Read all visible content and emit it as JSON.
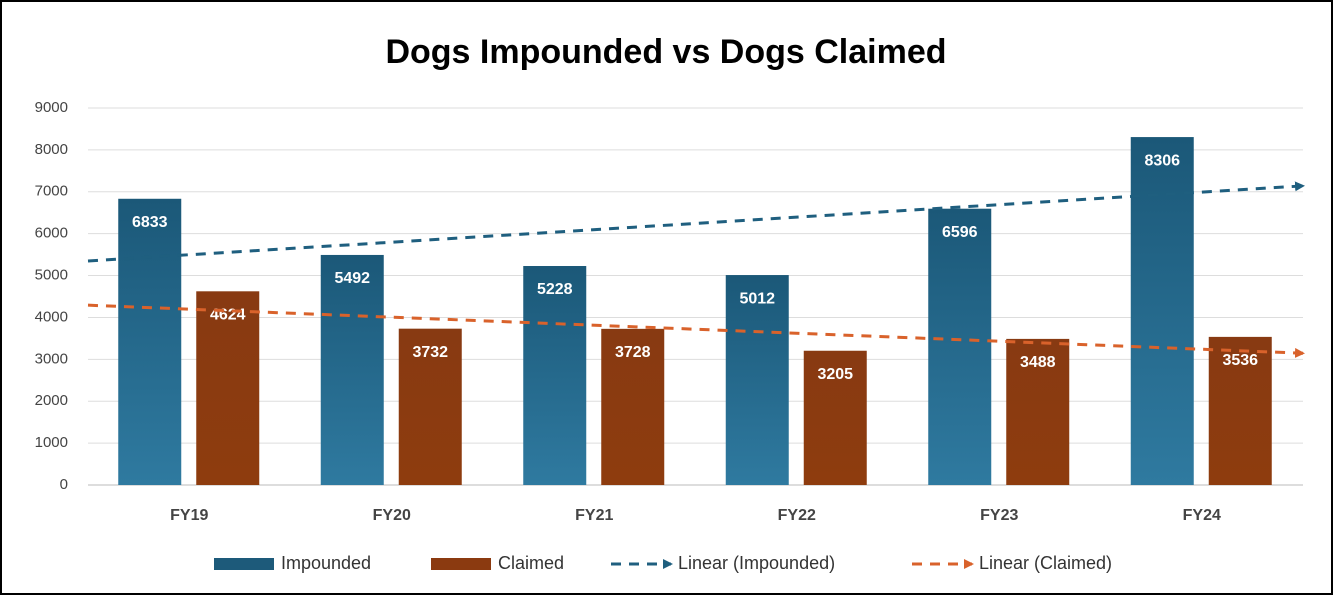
{
  "chart_data": {
    "type": "bar",
    "title": "Dogs Impounded  vs  Dogs Claimed",
    "categories": [
      "FY19",
      "FY20",
      "FY21",
      "FY22",
      "FY23",
      "FY24"
    ],
    "series": [
      {
        "name": "Impounded",
        "color": "#1d5a7a",
        "values": [
          6833,
          5492,
          5228,
          5012,
          6596,
          8306
        ]
      },
      {
        "name": "Claimed",
        "color": "#8b3a10",
        "values": [
          4624,
          3732,
          3728,
          3205,
          3488,
          3536
        ]
      }
    ],
    "trendlines": [
      {
        "name": "Linear (Impounded)",
        "series": 0,
        "color": "#1f5f7f"
      },
      {
        "name": "Linear (Claimed)",
        "series": 1,
        "color": "#d9622b"
      }
    ],
    "ylim": [
      0,
      9000
    ],
    "yticks": [
      0,
      1000,
      2000,
      3000,
      4000,
      5000,
      6000,
      7000,
      8000,
      9000
    ],
    "grid": true,
    "legend": "bottom"
  }
}
